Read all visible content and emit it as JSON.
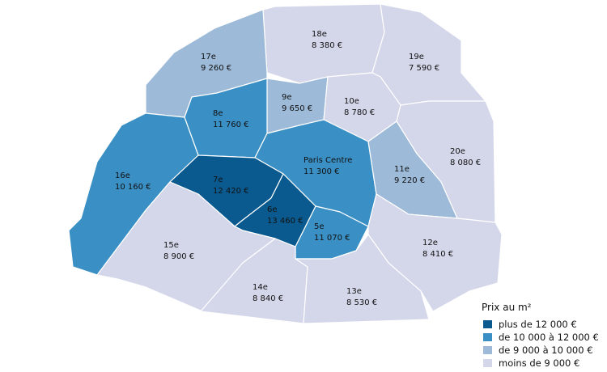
{
  "map": {
    "districts": [
      {
        "name": "18e",
        "price": "8 380 €",
        "color": "#d4d6ea"
      },
      {
        "name": "19e",
        "price": "7 590 €",
        "color": "#d4d6ea"
      },
      {
        "name": "17e",
        "price": "9 260 €",
        "color": "#9dbad8"
      },
      {
        "name": "9e",
        "price": "9 650 €",
        "color": "#9dbad8"
      },
      {
        "name": "10e",
        "price": "8 780 €",
        "color": "#d4d6ea"
      },
      {
        "name": "8e",
        "price": "11 760 €",
        "color": "#3a8fc4"
      },
      {
        "name": "Paris Centre",
        "price": "11 300 €",
        "color": "#3a8fc4"
      },
      {
        "name": "20e",
        "price": "8 080 €",
        "color": "#d4d6ea"
      },
      {
        "name": "16e",
        "price": "10 160 €",
        "color": "#3a8fc4"
      },
      {
        "name": "11e",
        "price": "9 220 €",
        "color": "#9dbad8"
      },
      {
        "name": "7e",
        "price": "12 420 €",
        "color": "#0a5a8f"
      },
      {
        "name": "6e",
        "price": "13 460 €",
        "color": "#0a5a8f"
      },
      {
        "name": "5e",
        "price": "11 070 €",
        "color": "#3a8fc4"
      },
      {
        "name": "15e",
        "price": "8 900 €",
        "color": "#d4d6ea"
      },
      {
        "name": "12e",
        "price": "8 410 €",
        "color": "#d4d6ea"
      },
      {
        "name": "14e",
        "price": "8 840 €",
        "color": "#d4d6ea"
      },
      {
        "name": "13e",
        "price": "8 530 €",
        "color": "#d4d6ea"
      }
    ],
    "legend": {
      "title": "Prix au m²",
      "items": [
        {
          "label": "plus de 12 000 €",
          "color": "#0a5a8f"
        },
        {
          "label": "de 10 000 à 12 000 €",
          "color": "#3a8fc4"
        },
        {
          "label": "de 9 000 à 10 000 €",
          "color": "#9dbad8"
        },
        {
          "label": "moins de 9 000 €",
          "color": "#d4d6ea"
        }
      ]
    }
  }
}
